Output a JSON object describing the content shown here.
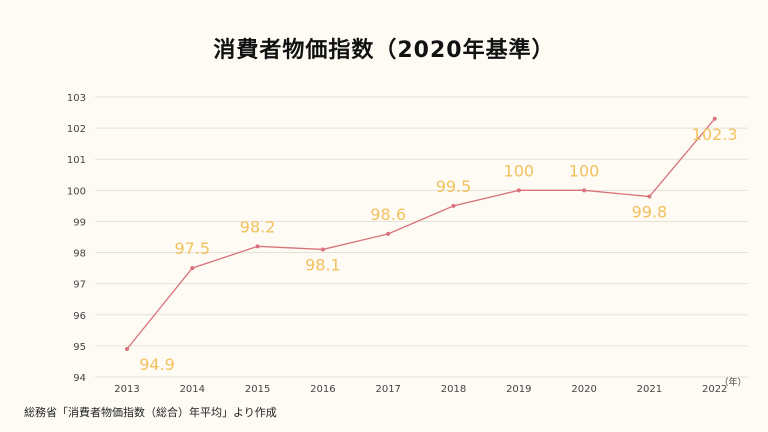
{
  "title": "消費者物価指数（2020年基準）",
  "source": "総務省「消費者物価指数（総合）年平均」より作成",
  "colors": {
    "line": "#d9727a",
    "label": "#f3c160",
    "grid": "#e6e2d8",
    "axis_text": "#444444",
    "background": "#fdfbf4"
  },
  "chart_data": {
    "type": "line",
    "title": "消費者物価指数（2020年基準）",
    "xlabel": "",
    "ylabel": "",
    "x_unit": "（年）",
    "categories": [
      "2013",
      "2014",
      "2015",
      "2016",
      "2017",
      "2018",
      "2019",
      "2020",
      "2021",
      "2022"
    ],
    "values": [
      94.9,
      97.5,
      98.2,
      98.1,
      98.6,
      99.5,
      100,
      100,
      99.8,
      102.3
    ],
    "data_labels": [
      "94.9",
      "97.5",
      "98.2",
      "98.1",
      "98.6",
      "99.5",
      "100",
      "100",
      "99.8",
      "102.3"
    ],
    "label_positions": [
      "below",
      "above",
      "above",
      "below",
      "above",
      "above",
      "above",
      "above",
      "below",
      "below"
    ],
    "ylim": [
      94,
      103
    ],
    "yticks": [
      "94",
      "95",
      "96",
      "97",
      "98",
      "99",
      "100",
      "101",
      "102",
      "103"
    ],
    "grid": true
  }
}
